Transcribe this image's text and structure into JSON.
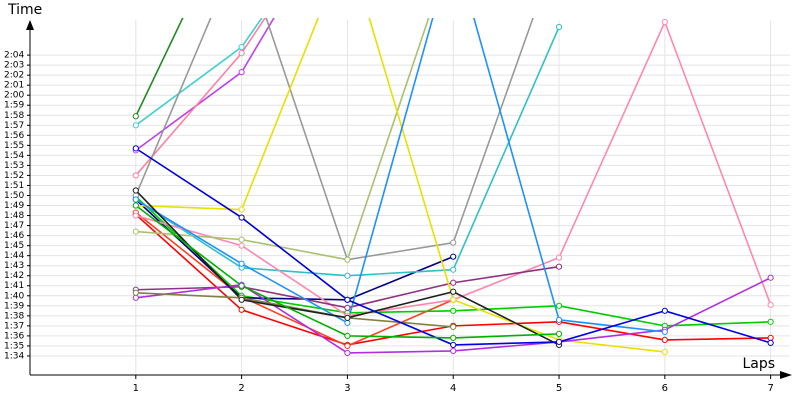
{
  "chart_data": {
    "type": "line",
    "y_label": "Time",
    "x_label": "Laps",
    "x": [
      1,
      2,
      3,
      4,
      5,
      6,
      7
    ],
    "xlim": [
      0,
      7.2
    ],
    "xticks": [
      1,
      2,
      3,
      4,
      5,
      6,
      7
    ],
    "ylim": [
      92.1,
      127.5
    ],
    "yticks": [
      {
        "value": 94,
        "label": "1:34"
      },
      {
        "value": 95,
        "label": "1:35"
      },
      {
        "value": 96,
        "label": "1:36"
      },
      {
        "value": 97,
        "label": "1:37"
      },
      {
        "value": 98,
        "label": "1:38"
      },
      {
        "value": 99,
        "label": "1:39"
      },
      {
        "value": 100,
        "label": "1:40"
      },
      {
        "value": 101,
        "label": "1:41"
      },
      {
        "value": 102,
        "label": "1:42"
      },
      {
        "value": 103,
        "label": "1:43"
      },
      {
        "value": 104,
        "label": "1:44"
      },
      {
        "value": 105,
        "label": "1:45"
      },
      {
        "value": 106,
        "label": "1:46"
      },
      {
        "value": 107,
        "label": "1:47"
      },
      {
        "value": 108,
        "label": "1:48"
      },
      {
        "value": 109,
        "label": "1:49"
      },
      {
        "value": 110,
        "label": "1:50"
      },
      {
        "value": 111,
        "label": "1:51"
      },
      {
        "value": 112,
        "label": "1:52"
      },
      {
        "value": 113,
        "label": "1:53"
      },
      {
        "value": 114,
        "label": "1:54"
      },
      {
        "value": 115,
        "label": "1:55"
      },
      {
        "value": 116,
        "label": "1:56"
      },
      {
        "value": 117,
        "label": "1:57"
      },
      {
        "value": 118,
        "label": "1:58"
      },
      {
        "value": 119,
        "label": "1:59"
      },
      {
        "value": 120,
        "label": "2:00"
      },
      {
        "value": 121,
        "label": "2:01"
      },
      {
        "value": 122,
        "label": "2:02"
      },
      {
        "value": 123,
        "label": "2:03"
      },
      {
        "value": 124,
        "label": "2:04"
      }
    ],
    "grid": true,
    "series": [
      {
        "color": "#ff0000",
        "values": [
          108.1,
          98.6,
          95.1,
          97.0,
          97.4,
          95.6,
          95.8
        ]
      },
      {
        "color": "#ff4020",
        "values": [
          108.3,
          99.9,
          95.0,
          99.6,
          null,
          null,
          null
        ]
      },
      {
        "color": "#00cc00",
        "values": [
          109.9,
          100.0,
          98.3,
          98.5,
          99.0,
          97.0,
          97.4
        ]
      },
      {
        "color": "#000080",
        "values": [
          109.6,
          99.8,
          99.6,
          103.9,
          null,
          null,
          null
        ]
      },
      {
        "color": "#228b22",
        "values": [
          117.9,
          140.0,
          null,
          null,
          null,
          null,
          null
        ]
      },
      {
        "color": "#40d0d0",
        "values": [
          117.0,
          124.8,
          140.0,
          null,
          null,
          null,
          null
        ]
      },
      {
        "color": "#30c0c8",
        "values": [
          109.6,
          102.8,
          102.0,
          102.6,
          126.8,
          null,
          null
        ]
      },
      {
        "color": "#c040f0",
        "values": [
          114.5,
          122.3,
          140.0,
          null,
          null,
          null,
          null
        ]
      },
      {
        "color": "#ff80a0",
        "values": [
          112.0,
          124.2,
          140.0,
          null,
          null,
          null,
          null
        ]
      },
      {
        "color": "#ff88b0",
        "values": [
          108.0,
          105.0,
          98.0,
          99.6,
          103.8,
          127.3,
          99.1
        ]
      },
      {
        "color": "#999999",
        "values": [
          110.0,
          135.0,
          103.6,
          105.3,
          135.0,
          null,
          null
        ]
      },
      {
        "color": "#a8c070",
        "values": [
          106.4,
          105.6,
          103.6,
          135.0,
          null,
          null,
          null
        ]
      },
      {
        "color": "#903080",
        "values": [
          100.6,
          100.9,
          98.8,
          101.3,
          102.9,
          null,
          null
        ]
      },
      {
        "color": "#e8e000",
        "values": [
          109.0,
          108.6,
          135.0,
          99.6,
          95.6,
          94.4,
          null
        ]
      },
      {
        "color": "#b030e0",
        "values": [
          99.8,
          101.1,
          94.3,
          94.5,
          95.4,
          96.6,
          101.8
        ]
      },
      {
        "color": "#1e90ff",
        "values": [
          109.6,
          103.2,
          97.3,
          135.0,
          97.6,
          96.4,
          null
        ]
      },
      {
        "color": "#808040",
        "values": [
          100.3,
          99.8,
          97.8,
          96.9,
          null,
          null,
          null
        ]
      },
      {
        "color": "#202020",
        "values": [
          110.5,
          99.6,
          97.8,
          100.4,
          95.1,
          null,
          null
        ]
      },
      {
        "color": "#0000e0",
        "values": [
          114.7,
          107.8,
          99.6,
          95.1,
          95.4,
          98.5,
          95.3
        ]
      },
      {
        "color": "#00b000",
        "values": [
          109.0,
          101.0,
          96.0,
          95.8,
          96.2,
          null,
          null
        ]
      }
    ]
  }
}
